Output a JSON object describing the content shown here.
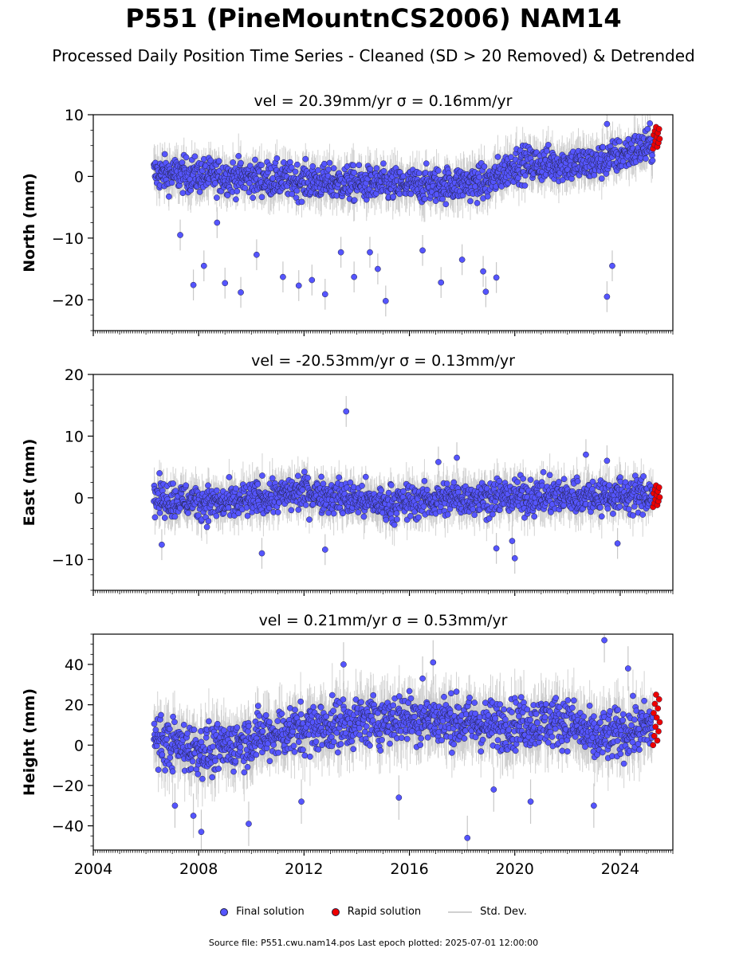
{
  "title": "P551 (PineMountnCS2006) NAM14",
  "subtitle": "Processed Daily Position Time Series - Cleaned (SD > 20 Removed) & Detrended",
  "legend": {
    "final": "Final solution",
    "rapid": "Rapid solution",
    "std": "Std. Dev."
  },
  "footer": "Source file: P551.cwu.nam14.pos  Last epoch plotted: 2025-07-01 12:00:00",
  "colors": {
    "final": "#5555ff",
    "rapid": "#ee0000",
    "std": "#c8c8c8",
    "edge": "#222244"
  },
  "chart_data": [
    {
      "type": "scatter",
      "title": "vel = 20.39mm/yr   σ = 0.16mm/yr",
      "ylabel": "North (mm)",
      "xlim": [
        2004,
        2026
      ],
      "ylim": [
        -25,
        10
      ],
      "yticks": [
        -20,
        -10,
        0,
        10
      ],
      "xticks": [
        "2004",
        "2008",
        "2012",
        "2016",
        "2020",
        "2024"
      ],
      "data_start": 2006.3,
      "rapid_start": 2025.25,
      "data_end": 2025.5,
      "trend": [
        [
          2006.3,
          0.5
        ],
        [
          2009,
          0
        ],
        [
          2013,
          -1
        ],
        [
          2016,
          -1.5
        ],
        [
          2019,
          -1
        ],
        [
          2020,
          2
        ],
        [
          2023,
          2
        ],
        [
          2025.5,
          5.5
        ]
      ],
      "spread": 2.5,
      "rapid_range": [
        4.5,
        8
      ],
      "outliers": [
        [
          2007.3,
          -9.5
        ],
        [
          2007.8,
          -17.6
        ],
        [
          2008.2,
          -14.5
        ],
        [
          2009.0,
          -17.3
        ],
        [
          2009.6,
          -18.8
        ],
        [
          2011.2,
          -16.3
        ],
        [
          2011.8,
          -17.7
        ],
        [
          2012.3,
          -16.8
        ],
        [
          2012.8,
          -19.1
        ],
        [
          2013.4,
          -12.3
        ],
        [
          2013.9,
          -16.3
        ],
        [
          2014.5,
          -12.3
        ],
        [
          2015.1,
          -20.2
        ],
        [
          2016.5,
          -12
        ],
        [
          2017.2,
          -17.2
        ],
        [
          2018.0,
          -13.5
        ],
        [
          2018.8,
          -15.4
        ],
        [
          2018.9,
          -18.7
        ],
        [
          2019.3,
          -16.4
        ],
        [
          2023.7,
          -14.5
        ],
        [
          2023.5,
          -19.5
        ],
        [
          2023.5,
          8.5
        ],
        [
          2008.7,
          -7.5
        ],
        [
          2010.2,
          -12.7
        ],
        [
          2014.8,
          -15
        ]
      ]
    },
    {
      "type": "scatter",
      "title": "vel = -20.53mm/yr   σ = 0.13mm/yr",
      "ylabel": "East (mm)",
      "xlim": [
        2004,
        2026
      ],
      "ylim": [
        -15,
        20
      ],
      "yticks": [
        -10,
        0,
        10,
        20
      ],
      "xticks": [
        "2004",
        "2008",
        "2012",
        "2016",
        "2020",
        "2024"
      ],
      "data_start": 2006.3,
      "rapid_start": 2025.25,
      "data_end": 2025.5,
      "trend": [
        [
          2006.3,
          0
        ],
        [
          2009,
          -1
        ],
        [
          2012,
          1
        ],
        [
          2015,
          -1
        ],
        [
          2018,
          0
        ],
        [
          2025.5,
          0.5
        ]
      ],
      "spread": 2.5,
      "rapid_range": [
        -1.5,
        2
      ],
      "outliers": [
        [
          2013.6,
          14
        ],
        [
          2006.6,
          -7.6
        ],
        [
          2010.4,
          -9
        ],
        [
          2012.8,
          -8.4
        ],
        [
          2019.3,
          -8.2
        ],
        [
          2020.0,
          -9.8
        ],
        [
          2017.1,
          5.8
        ],
        [
          2017.8,
          6.5
        ],
        [
          2022.7,
          7
        ],
        [
          2023.5,
          6
        ],
        [
          2023.9,
          -7.4
        ],
        [
          2019.9,
          -7
        ]
      ]
    },
    {
      "type": "scatter",
      "title": "vel = 0.21mm/yr   σ = 0.53mm/yr",
      "ylabel": "Height (mm)",
      "xlim": [
        2004,
        2026
      ],
      "ylim": [
        -52,
        55
      ],
      "yticks": [
        -40,
        -20,
        0,
        20,
        40
      ],
      "xticks": [
        "2004",
        "2008",
        "2012",
        "2016",
        "2020",
        "2024"
      ],
      "data_start": 2006.3,
      "rapid_start": 2025.25,
      "data_end": 2025.5,
      "trend": [
        [
          2006.3,
          2
        ],
        [
          2008.5,
          -3
        ],
        [
          2010.5,
          5
        ],
        [
          2013,
          10
        ],
        [
          2016,
          14
        ],
        [
          2019,
          10
        ],
        [
          2022,
          12
        ],
        [
          2023,
          3
        ],
        [
          2025.5,
          10
        ]
      ],
      "spread": 11,
      "rapid_range": [
        0,
        25
      ],
      "outliers": [
        [
          2023.4,
          52
        ],
        [
          2018.2,
          -46
        ],
        [
          2008.1,
          -43
        ],
        [
          2009.9,
          -39
        ],
        [
          2007.8,
          -35
        ],
        [
          2023.0,
          -30
        ],
        [
          2020.6,
          -28
        ],
        [
          2016.5,
          33
        ],
        [
          2016.9,
          41
        ],
        [
          2013.5,
          40
        ],
        [
          2024.3,
          38
        ],
        [
          2007.1,
          -30
        ],
        [
          2011.9,
          -28
        ],
        [
          2015.6,
          -26
        ],
        [
          2019.2,
          -22
        ]
      ]
    }
  ]
}
